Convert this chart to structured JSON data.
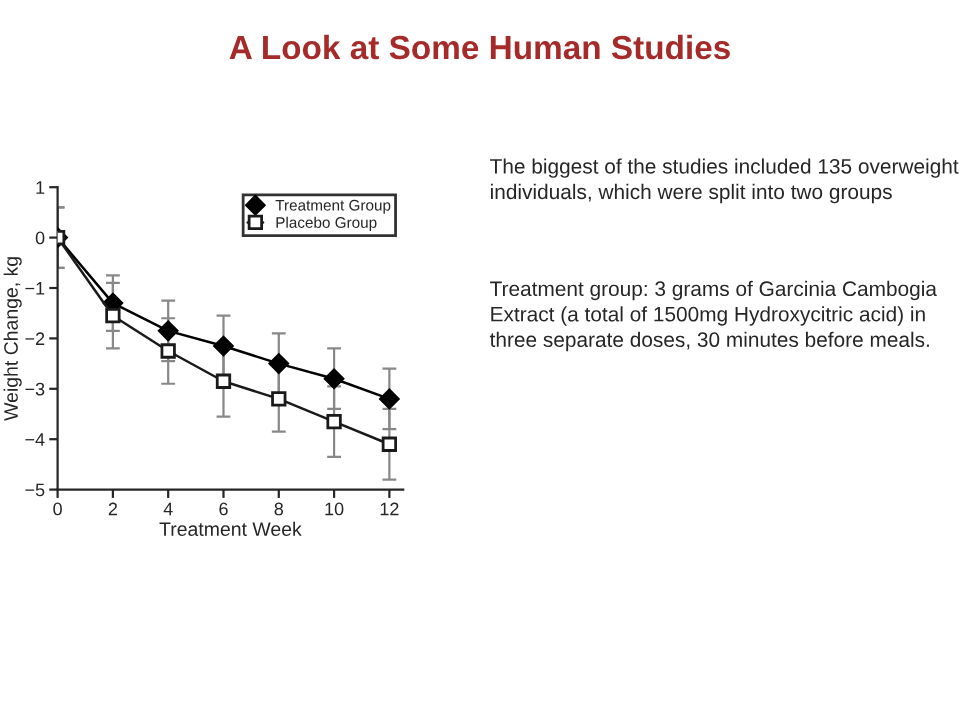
{
  "chart_data": {
    "type": "line",
    "title": "A Look at Some Human Studies",
    "xlabel": "Treatment Week",
    "ylabel": "Weight Change, kg",
    "x": [
      0,
      2,
      4,
      6,
      8,
      10,
      12
    ],
    "series": [
      {
        "name": "Treatment Group",
        "color": "#000000",
        "marker": "diamond",
        "values": [
          0,
          -1.3,
          -1.85,
          -2.15,
          -2.5,
          -2.8,
          -3.2
        ],
        "errors": [
          0.6,
          0.55,
          0.6,
          0.6,
          0.6,
          0.6,
          0.6
        ]
      },
      {
        "name": "Placebo Group",
        "color": "#1a1a1a",
        "marker": "square",
        "values": [
          0,
          -1.55,
          -2.25,
          -2.85,
          -3.2,
          -3.65,
          -4.1
        ],
        "errors": [
          0.6,
          0.65,
          0.65,
          0.7,
          0.65,
          0.7,
          0.7
        ]
      }
    ],
    "xlim": [
      0,
      12.5
    ],
    "xticks": [
      0,
      2,
      4,
      6,
      8,
      10,
      12
    ],
    "ylim": [
      -5,
      1
    ],
    "yticks": [
      {
        "value": -5,
        "label": "−5"
      },
      {
        "value": -4,
        "label": "−4"
      },
      {
        "value": -3,
        "label": "−3"
      },
      {
        "value": -2,
        "label": "−2"
      },
      {
        "value": -1,
        "label": "−1"
      },
      0,
      1
    ],
    "legend": "top right",
    "grid": false,
    "annotations": [
      "The biggest of the studies included 135 overweight individuals, which were split into two groups",
      "Treatment group: 3 grams of Garcinia Cambogia Extract (a total of 1500mg Hydroxycitric acid) in three separate doses, 30 minutes before meals."
    ]
  }
}
